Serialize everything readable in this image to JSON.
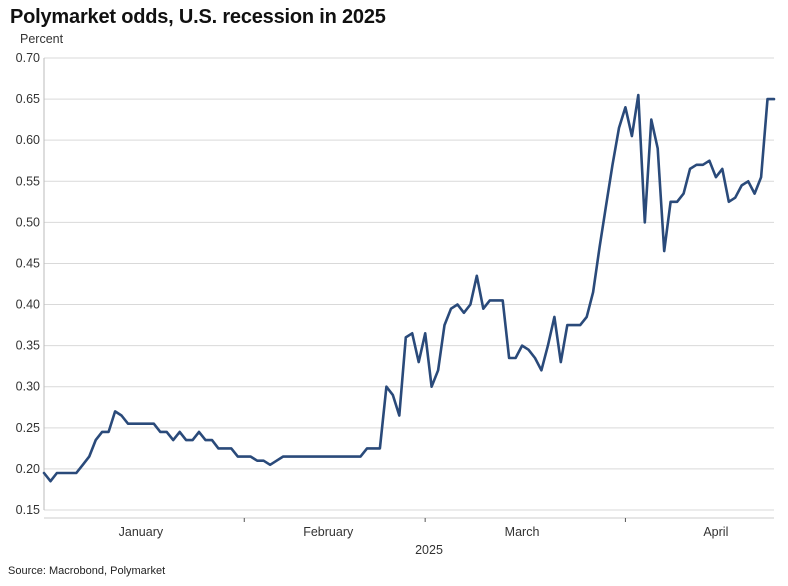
{
  "title": "Polymarket odds, U.S. recession in 2025",
  "source": "Source: Macrobond, Polymarket",
  "colors": {
    "line": "#2a4a7a",
    "grid": "#d9d9d9",
    "axis": "#555555",
    "text": "#333333"
  },
  "chart_data": {
    "type": "line",
    "title": "Polymarket odds, U.S. recession in 2025",
    "ylabel": "Percent",
    "xlabel": "2025",
    "ylim": [
      0.15,
      0.7
    ],
    "yticks": [
      "0.15",
      "0.20",
      "0.25",
      "0.30",
      "0.35",
      "0.40",
      "0.45",
      "0.50",
      "0.55",
      "0.60",
      "0.65",
      "0.70"
    ],
    "xlim": [
      "2025-01-01",
      "2025-04-24"
    ],
    "month_labels": [
      {
        "label": "January",
        "date": "2025-01-16"
      },
      {
        "label": "February",
        "date": "2025-02-14"
      },
      {
        "label": "March",
        "date": "2025-03-16"
      },
      {
        "label": "April",
        "date": "2025-04-15"
      }
    ],
    "month_ticks": [
      "2025-02-01",
      "2025-03-01",
      "2025-04-01"
    ],
    "grid": true,
    "series": [
      {
        "x": [
          "2025-01-01",
          "2025-01-02",
          "2025-01-03",
          "2025-01-04",
          "2025-01-05",
          "2025-01-06",
          "2025-01-07",
          "2025-01-08",
          "2025-01-09",
          "2025-01-10",
          "2025-01-11",
          "2025-01-12",
          "2025-01-13",
          "2025-01-14",
          "2025-01-15",
          "2025-01-16",
          "2025-01-17",
          "2025-01-18",
          "2025-01-19",
          "2025-01-20",
          "2025-01-21",
          "2025-01-22",
          "2025-01-23",
          "2025-01-24",
          "2025-01-25",
          "2025-01-26",
          "2025-01-27",
          "2025-01-28",
          "2025-01-29",
          "2025-01-30",
          "2025-01-31",
          "2025-02-01",
          "2025-02-02",
          "2025-02-03",
          "2025-02-04",
          "2025-02-05",
          "2025-02-06",
          "2025-02-07",
          "2025-02-08",
          "2025-02-09",
          "2025-02-10",
          "2025-02-11",
          "2025-02-12",
          "2025-02-13",
          "2025-02-14",
          "2025-02-15",
          "2025-02-16",
          "2025-02-17",
          "2025-02-18",
          "2025-02-19",
          "2025-02-20",
          "2025-02-21",
          "2025-02-22",
          "2025-02-23",
          "2025-02-24",
          "2025-02-25",
          "2025-02-26",
          "2025-02-27",
          "2025-02-28",
          "2025-03-01",
          "2025-03-02",
          "2025-03-03",
          "2025-03-04",
          "2025-03-05",
          "2025-03-06",
          "2025-03-07",
          "2025-03-08",
          "2025-03-09",
          "2025-03-10",
          "2025-03-11",
          "2025-03-12",
          "2025-03-13",
          "2025-03-14",
          "2025-03-15",
          "2025-03-16",
          "2025-03-17",
          "2025-03-18",
          "2025-03-19",
          "2025-03-20",
          "2025-03-21",
          "2025-03-22",
          "2025-03-23",
          "2025-03-24",
          "2025-03-25",
          "2025-03-26",
          "2025-03-27",
          "2025-03-28",
          "2025-03-29",
          "2025-03-30",
          "2025-03-31",
          "2025-04-01",
          "2025-04-02",
          "2025-04-03",
          "2025-04-04",
          "2025-04-05",
          "2025-04-06",
          "2025-04-07",
          "2025-04-08",
          "2025-04-09",
          "2025-04-10",
          "2025-04-11",
          "2025-04-12",
          "2025-04-13",
          "2025-04-14",
          "2025-04-15",
          "2025-04-16",
          "2025-04-17",
          "2025-04-18",
          "2025-04-19",
          "2025-04-20",
          "2025-04-21",
          "2025-04-22",
          "2025-04-23",
          "2025-04-24"
        ],
        "values": [
          0.195,
          0.185,
          0.195,
          0.195,
          0.195,
          0.195,
          0.205,
          0.215,
          0.235,
          0.245,
          0.245,
          0.27,
          0.265,
          0.255,
          0.255,
          0.255,
          0.255,
          0.255,
          0.245,
          0.245,
          0.235,
          0.245,
          0.235,
          0.235,
          0.245,
          0.235,
          0.235,
          0.225,
          0.225,
          0.225,
          0.215,
          0.215,
          0.215,
          0.21,
          0.21,
          0.205,
          0.21,
          0.215,
          0.215,
          0.215,
          0.215,
          0.215,
          0.215,
          0.215,
          0.215,
          0.215,
          0.215,
          0.215,
          0.215,
          0.215,
          0.225,
          0.225,
          0.225,
          0.3,
          0.29,
          0.265,
          0.36,
          0.365,
          0.33,
          0.365,
          0.3,
          0.32,
          0.375,
          0.395,
          0.4,
          0.39,
          0.4,
          0.435,
          0.395,
          0.405,
          0.405,
          0.405,
          0.335,
          0.335,
          0.35,
          0.345,
          0.335,
          0.32,
          0.35,
          0.385,
          0.33,
          0.375,
          0.375,
          0.375,
          0.385,
          0.415,
          0.47,
          0.52,
          0.57,
          0.615,
          0.64,
          0.605,
          0.655,
          0.5,
          0.625,
          0.59,
          0.465,
          0.525,
          0.525,
          0.535,
          0.565,
          0.57,
          0.57,
          0.575,
          0.555,
          0.565,
          0.525,
          0.53,
          0.545,
          0.55,
          0.535,
          0.555,
          0.65,
          0.65
        ]
      }
    ]
  }
}
